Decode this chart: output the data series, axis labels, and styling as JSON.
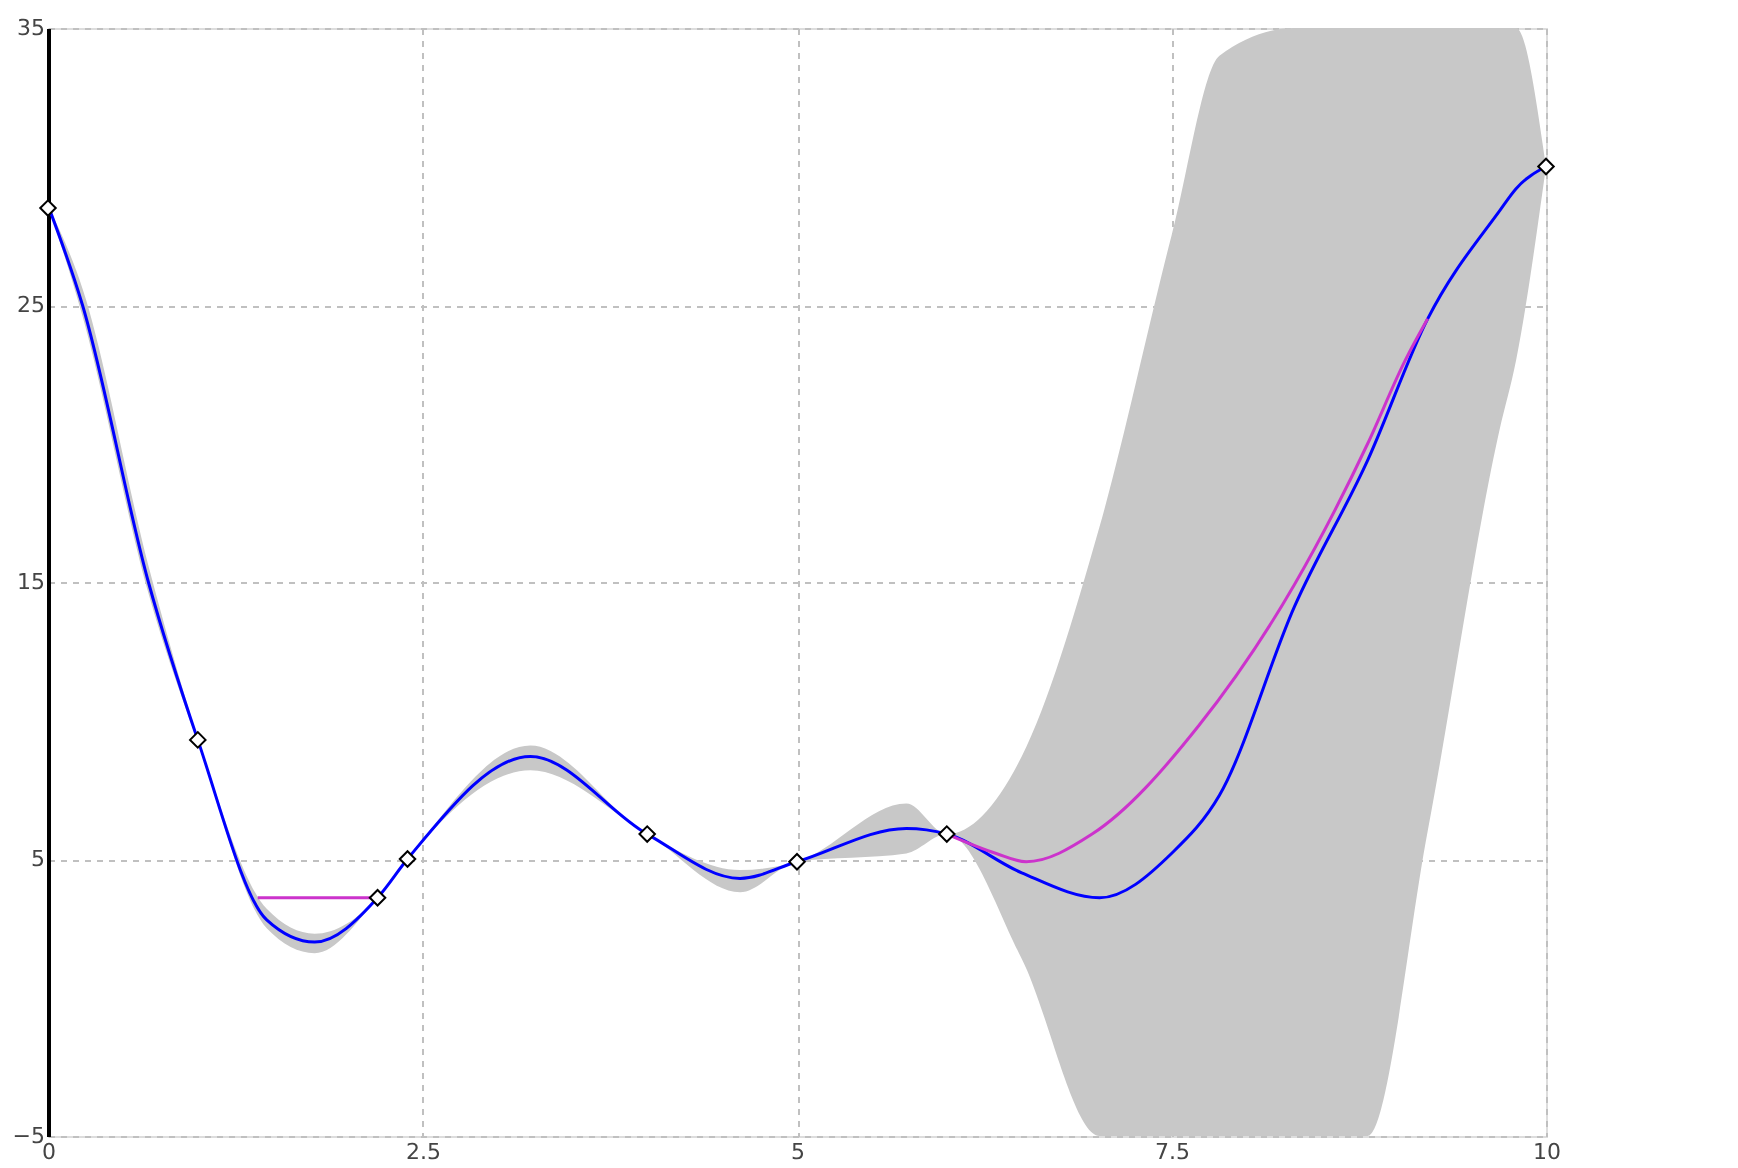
{
  "chart_data": {
    "type": "line",
    "xlim": [
      0,
      10
    ],
    "xticks": [
      0,
      2.5,
      5,
      7.5,
      10
    ],
    "ylim": [
      -5,
      35
    ],
    "yticks": [
      -5,
      5,
      15,
      25,
      35
    ],
    "grid": true,
    "line_style": "solid",
    "series": [
      {
        "color": "#0000ff",
        "x": [
          0,
          0.23,
          0.67,
          1,
          1.46,
          1.78,
          2.2,
          2.4,
          3.22,
          4,
          4.62,
          5,
          5.73,
          6,
          6.5,
          7.02,
          7.5,
          7.82,
          8.32,
          8.81,
          9.21,
          9.69,
          9.8,
          10
        ],
        "values": [
          28.6,
          25,
          15,
          9.3,
          2.8,
          2.0,
          3.6,
          5.0,
          8.7,
          5.9,
          4.3,
          4.9,
          6.1,
          5.9,
          4.5,
          3.6,
          5.2,
          7.3,
          14.1,
          19.4,
          24.5,
          28.4,
          29.2,
          30
        ],
        "upper": [
          28.6,
          25.6,
          15.6,
          9.4,
          3.2,
          2.3,
          3.6,
          5.0,
          9.1,
          5.9,
          4.6,
          4.9,
          7.0,
          5.9,
          8.7,
          17.0,
          27.5,
          34,
          35,
          35,
          35,
          35,
          35,
          30
        ],
        "lower": [
          28.6,
          24.6,
          14.6,
          9.2,
          2.5,
          1.6,
          3.6,
          5.0,
          8.2,
          5.9,
          3.8,
          4.9,
          5.2,
          5.9,
          1.4,
          -5,
          -5,
          -5,
          -5,
          -5,
          6,
          20.5,
          23,
          30
        ]
      },
      {
        "color": "#cc33cc",
        "x": [
          1.4,
          2.2,
          4,
          6.0,
          6.33,
          6.53,
          6.97,
          7.68,
          8.32,
          8.81,
          9.06,
          9.21
        ],
        "values": [
          3.6,
          3.6,
          null,
          5.9,
          5.2,
          4.9,
          5.9,
          9.8,
          14.9,
          20.0,
          23.0,
          24.5
        ]
      },
      {
        "type": "scatter",
        "color": "#000000",
        "marker": "diamond",
        "x": [
          0,
          1,
          2.2,
          2.4,
          4,
          5,
          6,
          10
        ],
        "values": [
          28.5,
          9.3,
          3.6,
          5.0,
          5.9,
          4.9,
          5.9,
          30
        ]
      }
    ]
  }
}
